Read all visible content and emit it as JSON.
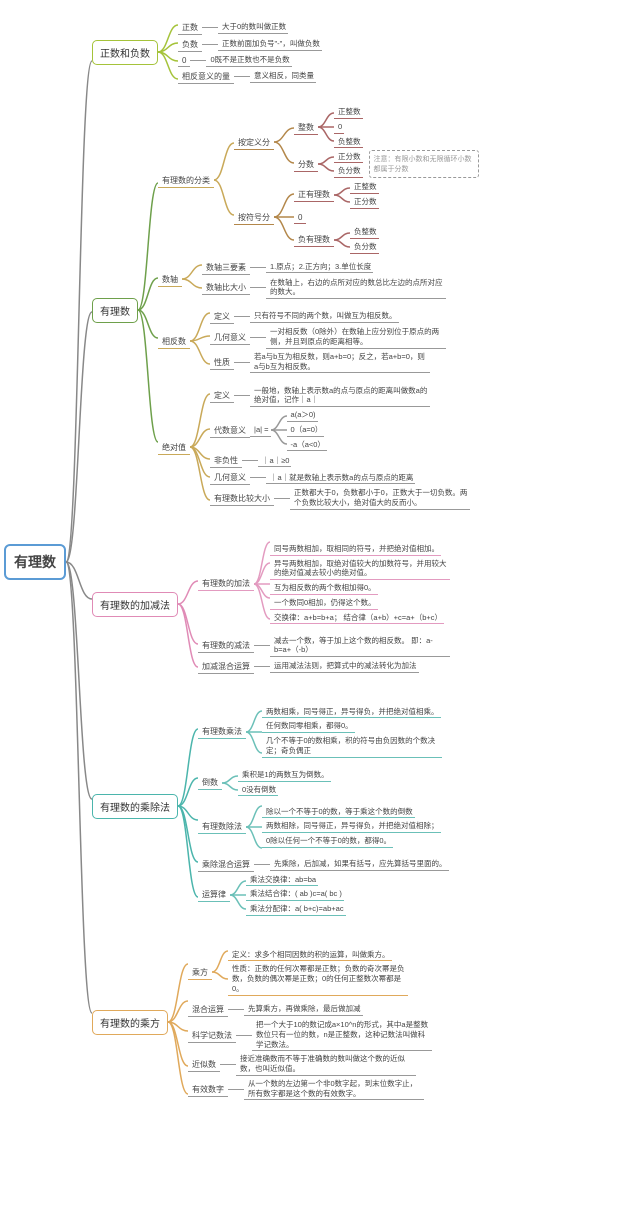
{
  "root": {
    "label": "有理数",
    "color": "#5b9bd5"
  },
  "sections": [
    {
      "label": "正数和负数",
      "color": "#a5c33a",
      "children": [
        {
          "label": "正数",
          "desc": "大于0的数叫做正数"
        },
        {
          "label": "负数",
          "desc": "正数前面加负号\"-\"，叫做负数"
        },
        {
          "label": "0",
          "desc": "0既不是正数也不是负数"
        },
        {
          "label": "相反意义的量",
          "desc": "意义相反，同类量"
        }
      ]
    },
    {
      "label": "有理数",
      "color": "#6ea04b",
      "children": [
        {
          "label": "有理数的分类",
          "color": "#c9a959",
          "children": [
            {
              "label": "按定义分",
              "color": "#b3874a",
              "children": [
                {
                  "label": "整数",
                  "color": "#a66",
                  "items": [
                    "正整数",
                    "0",
                    "负整数"
                  ]
                },
                {
                  "label": "分数",
                  "color": "#a66",
                  "items": [
                    "正分数",
                    "负分数"
                  ],
                  "note": "注意：有限小数和无限循环小数都属于分数"
                }
              ]
            },
            {
              "label": "按符号分",
              "color": "#b3874a",
              "children": [
                {
                  "label": "正有理数",
                  "color": "#a66",
                  "items": [
                    "正整数",
                    "正分数"
                  ]
                },
                {
                  "label": "0",
                  "color": "#a66"
                },
                {
                  "label": "负有理数",
                  "color": "#a66",
                  "items": [
                    "负整数",
                    "负分数"
                  ]
                }
              ]
            }
          ]
        },
        {
          "label": "数轴",
          "color": "#c9a959",
          "children": [
            {
              "label": "数轴三要素",
              "desc": "1.原点；2.正方向；3.单位长度"
            },
            {
              "label": "数轴比大小",
              "desc": "在数轴上，右边的点所对应的数总比左边的点所对应的数大。"
            }
          ]
        },
        {
          "label": "相反数",
          "color": "#c9a959",
          "children": [
            {
              "label": "定义",
              "desc": "只有符号不同的两个数，叫做互为相反数。"
            },
            {
              "label": "几何意义",
              "desc": "一对相反数（0除外）在数轴上应分别位于原点的两侧，并且到原点的距离相等。"
            },
            {
              "label": "性质",
              "desc": "若a与b互为相反数，则a+b=0；反之，若a+b=0，则a与b互为相反数。"
            }
          ]
        },
        {
          "label": "绝对值",
          "color": "#c9a959",
          "children": [
            {
              "label": "定义",
              "desc": "一般地，数轴上表示数a的点与原点的距离叫做数a的绝对值，记作｜a｜"
            },
            {
              "label": "代数意义",
              "desc": "|a| =",
              "items": [
                "a(a＞0)",
                "0（a=0）",
                "-a（a<0）"
              ]
            },
            {
              "label": "非负性",
              "desc": "｜a｜≥0"
            },
            {
              "label": "几何意义",
              "desc": "｜a｜就是数轴上表示数a的点与原点的距离"
            },
            {
              "label": "有理数比较大小",
              "desc": "正数都大于0，负数都小于0，正数大于一切负数。两个负数比较大小，绝对值大的反而小。"
            }
          ]
        }
      ]
    },
    {
      "label": "有理数的加减法",
      "color": "#e08bb6",
      "children": [
        {
          "label": "有理数的加法",
          "color": "#e39bc0",
          "items": [
            "同号两数相加，取相同的符号，并把绝对值相加。",
            "异号两数相加，取绝对值较大的加数符号，并用较大的绝对值减去较小的绝对值。",
            "互为相反数的两个数相加得0。",
            "一个数同0相加，仍得这个数。",
            "交换律：a+b=b+a；   结合律（a+b）+c=a+（b+c）"
          ]
        },
        {
          "label": "有理数的减法",
          "desc": "减去一个数，等于加上这个数的相反数。  即：a-b=a+（-b）"
        },
        {
          "label": "加减混合运算",
          "desc": "运用减法法则，把算式中的减法转化为加法"
        }
      ]
    },
    {
      "label": "有理数的乘除法",
      "color": "#4bb5ac",
      "children": [
        {
          "label": "有理数乘法",
          "color": "#6bc0b8",
          "items": [
            "两数相乘，同号得正，异号得负，并把绝对值相乘。",
            "任何数同零相乘，都得0。",
            "几个不等于0的数相乘，积的符号由负因数的个数决定；奇负偶正"
          ]
        },
        {
          "label": "倒数",
          "color": "#6bc0b8",
          "items": [
            "乘积是1的两数互为倒数。",
            "0没有倒数"
          ]
        },
        {
          "label": "有理数除法",
          "color": "#6bc0b8",
          "items": [
            "除以一个不等于0的数，等于乘这个数的倒数",
            "两数相除，同号得正，异号得负，并把绝对值相除；",
            "0除以任何一个不等于0的数，都得0。"
          ]
        },
        {
          "label": "乘除混合运算",
          "desc": "先乘除，后加减，如果有括号，应先算括号里面的。"
        },
        {
          "label": "运算律",
          "color": "#6bc0b8",
          "items": [
            "乘法交换律：ab=ba",
            "乘法结合律：( ab )c=a( bc )",
            "乘法分配律：a( b+c)=ab+ac"
          ]
        }
      ]
    },
    {
      "label": "有理数的乘方",
      "color": "#e0a95b",
      "children": [
        {
          "label": "乘方",
          "color": "#e0a95b",
          "items": [
            "定义：求多个相同因数的积的运算，叫做乘方。",
            "性质：正数的任何次幂都是正数；负数的奇次幂是负数，负数的偶次幂是正数；0的任何正整数次幂都是0。"
          ]
        },
        {
          "label": "混合运算",
          "desc": "先算乘方，再做乘除，最后做加减"
        },
        {
          "label": "科学记数法",
          "desc": "把一个大于10的数记成a×10^n的形式，其中a是整数数位只有一位的数，n是正整数，这种记数法叫做科学记数法。"
        },
        {
          "label": "近似数",
          "desc": "接近准确数而不等于准确数的数叫做这个数的近似数，也叫近似值。"
        },
        {
          "label": "有效数字",
          "desc": "从一个数的左边第一个非0数字起，到末位数字止，所有数字都是这个数的有效数字。"
        }
      ]
    }
  ]
}
